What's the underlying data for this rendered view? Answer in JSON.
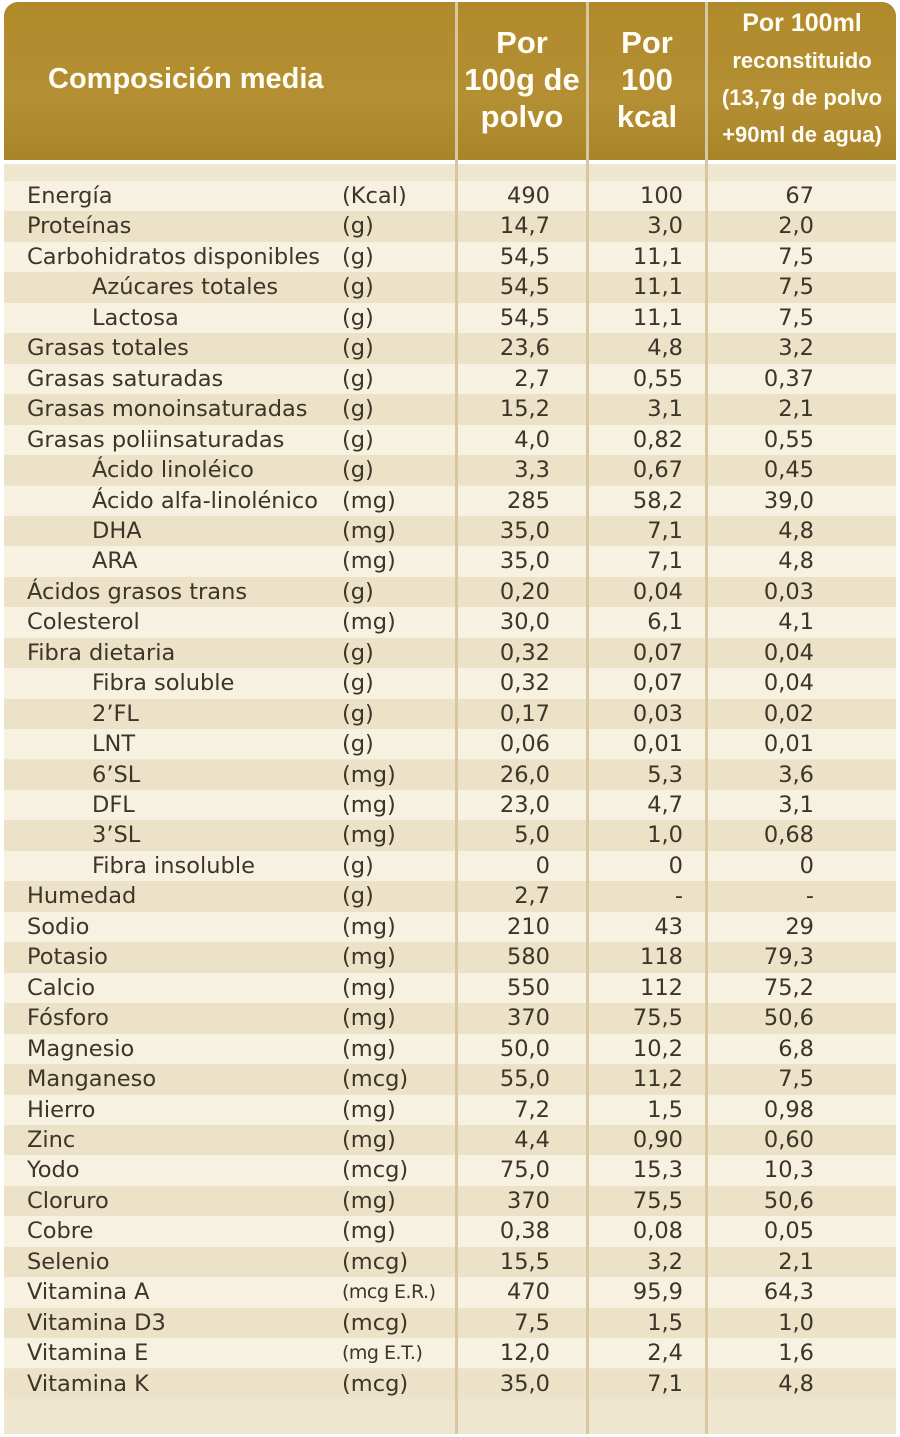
{
  "header": {
    "title": "Composición media",
    "col1": [
      "Por",
      "100g de",
      "polvo"
    ],
    "col2": [
      "Por",
      "100",
      "kcal"
    ],
    "col3": [
      "Por 100ml",
      "reconstituido",
      "(13,7g de polvo",
      "+90ml de agua)"
    ]
  },
  "rows": [
    {
      "label": "Energía",
      "unit": "(Kcal)",
      "v1": "490",
      "v2": "100",
      "v3": "67",
      "indent": false
    },
    {
      "label": "Proteínas",
      "unit": "(g)",
      "v1": "14,7",
      "v2": "3,0",
      "v3": "2,0",
      "indent": false
    },
    {
      "label": "Carbohidratos disponibles",
      "unit": "(g)",
      "v1": "54,5",
      "v2": "11,1",
      "v3": "7,5",
      "indent": false
    },
    {
      "label": "Azúcares totales",
      "unit": "(g)",
      "v1": "54,5",
      "v2": "11,1",
      "v3": "7,5",
      "indent": true
    },
    {
      "label": "Lactosa",
      "unit": "(g)",
      "v1": "54,5",
      "v2": "11,1",
      "v3": "7,5",
      "indent": true
    },
    {
      "label": "Grasas totales",
      "unit": "(g)",
      "v1": "23,6",
      "v2": "4,8",
      "v3": "3,2",
      "indent": false
    },
    {
      "label": "Grasas saturadas",
      "unit": "(g)",
      "v1": "2,7",
      "v2": "0,55",
      "v3": "0,37",
      "indent": false
    },
    {
      "label": "Grasas monoinsaturadas",
      "unit": "(g)",
      "v1": "15,2",
      "v2": "3,1",
      "v3": "2,1",
      "indent": false
    },
    {
      "label": "Grasas poliinsaturadas",
      "unit": "(g)",
      "v1": "4,0",
      "v2": "0,82",
      "v3": "0,55",
      "indent": false
    },
    {
      "label": "Ácido linoléico",
      "unit": "(g)",
      "v1": "3,3",
      "v2": "0,67",
      "v3": "0,45",
      "indent": true
    },
    {
      "label": "Ácido alfa-linolénico",
      "unit": "(mg)",
      "v1": "285",
      "v2": "58,2",
      "v3": "39,0",
      "indent": true
    },
    {
      "label": "DHA",
      "unit": "(mg)",
      "v1": "35,0",
      "v2": "7,1",
      "v3": "4,8",
      "indent": true
    },
    {
      "label": "ARA",
      "unit": "(mg)",
      "v1": "35,0",
      "v2": "7,1",
      "v3": "4,8",
      "indent": true
    },
    {
      "label": "Ácidos grasos trans",
      "unit": "(g)",
      "v1": "0,20",
      "v2": "0,04",
      "v3": "0,03",
      "indent": false
    },
    {
      "label": "Colesterol",
      "unit": "(mg)",
      "v1": "30,0",
      "v2": "6,1",
      "v3": "4,1",
      "indent": false
    },
    {
      "label": "Fibra dietaria",
      "unit": "(g)",
      "v1": "0,32",
      "v2": "0,07",
      "v3": "0,04",
      "indent": false
    },
    {
      "label": "Fibra soluble",
      "unit": "(g)",
      "v1": "0,32",
      "v2": "0,07",
      "v3": "0,04",
      "indent": true
    },
    {
      "label": "2’FL",
      "unit": "(g)",
      "v1": "0,17",
      "v2": "0,03",
      "v3": "0,02",
      "indent": true
    },
    {
      "label": "LNT",
      "unit": "(g)",
      "v1": "0,06",
      "v2": "0,01",
      "v3": "0,01",
      "indent": true
    },
    {
      "label": "6’SL",
      "unit": "(mg)",
      "v1": "26,0",
      "v2": "5,3",
      "v3": "3,6",
      "indent": true
    },
    {
      "label": "DFL",
      "unit": "(mg)",
      "v1": "23,0",
      "v2": "4,7",
      "v3": "3,1",
      "indent": true
    },
    {
      "label": "3’SL",
      "unit": "(mg)",
      "v1": "5,0",
      "v2": "1,0",
      "v3": "0,68",
      "indent": true
    },
    {
      "label": "Fibra insoluble",
      "unit": "(g)",
      "v1": "0",
      "v2": "0",
      "v3": "0",
      "indent": true
    },
    {
      "label": "Humedad",
      "unit": "(g)",
      "v1": "2,7",
      "v2": "-",
      "v3": "-",
      "indent": false
    },
    {
      "label": "Sodio",
      "unit": "(mg)",
      "v1": "210",
      "v2": "43",
      "v3": "29",
      "indent": false
    },
    {
      "label": "Potasio",
      "unit": "(mg)",
      "v1": "580",
      "v2": "118",
      "v3": "79,3",
      "indent": false
    },
    {
      "label": "Calcio",
      "unit": "(mg)",
      "v1": "550",
      "v2": "112",
      "v3": "75,2",
      "indent": false
    },
    {
      "label": "Fósforo",
      "unit": "(mg)",
      "v1": "370",
      "v2": "75,5",
      "v3": "50,6",
      "indent": false
    },
    {
      "label": "Magnesio",
      "unit": "(mg)",
      "v1": "50,0",
      "v2": "10,2",
      "v3": "6,8",
      "indent": false
    },
    {
      "label": "Manganeso",
      "unit": "(mcg)",
      "v1": "55,0",
      "v2": "11,2",
      "v3": "7,5",
      "indent": false
    },
    {
      "label": "Hierro",
      "unit": "(mg)",
      "v1": "7,2",
      "v2": "1,5",
      "v3": "0,98",
      "indent": false
    },
    {
      "label": "Zinc",
      "unit": "(mg)",
      "v1": "4,4",
      "v2": "0,90",
      "v3": "0,60",
      "indent": false
    },
    {
      "label": "Yodo",
      "unit": "(mcg)",
      "v1": "75,0",
      "v2": "15,3",
      "v3": "10,3",
      "indent": false
    },
    {
      "label": "Cloruro",
      "unit": "(mg)",
      "v1": "370",
      "v2": "75,5",
      "v3": "50,6",
      "indent": false
    },
    {
      "label": "Cobre",
      "unit": "(mg)",
      "v1": "0,38",
      "v2": "0,08",
      "v3": "0,05",
      "indent": false
    },
    {
      "label": "Selenio",
      "unit": "(mcg)",
      "v1": "15,5",
      "v2": "3,2",
      "v3": "2,1",
      "indent": false
    },
    {
      "label": "Vitamina A",
      "unit": "(mcg E.R.)",
      "v1": "470",
      "v2": "95,9",
      "v3": "64,3",
      "indent": false
    },
    {
      "label": "Vitamina D3",
      "unit": "(mcg)",
      "v1": "7,5",
      "v2": "1,5",
      "v3": "1,0",
      "indent": false
    },
    {
      "label": "Vitamina E",
      "unit": "(mg E.T.)",
      "v1": "12,0",
      "v2": "2,4",
      "v3": "1,6",
      "indent": false
    },
    {
      "label": "Vitamina K",
      "unit": "(mcg)",
      "v1": "35,0",
      "v2": "7,1",
      "v3": "4,8",
      "indent": false
    }
  ]
}
